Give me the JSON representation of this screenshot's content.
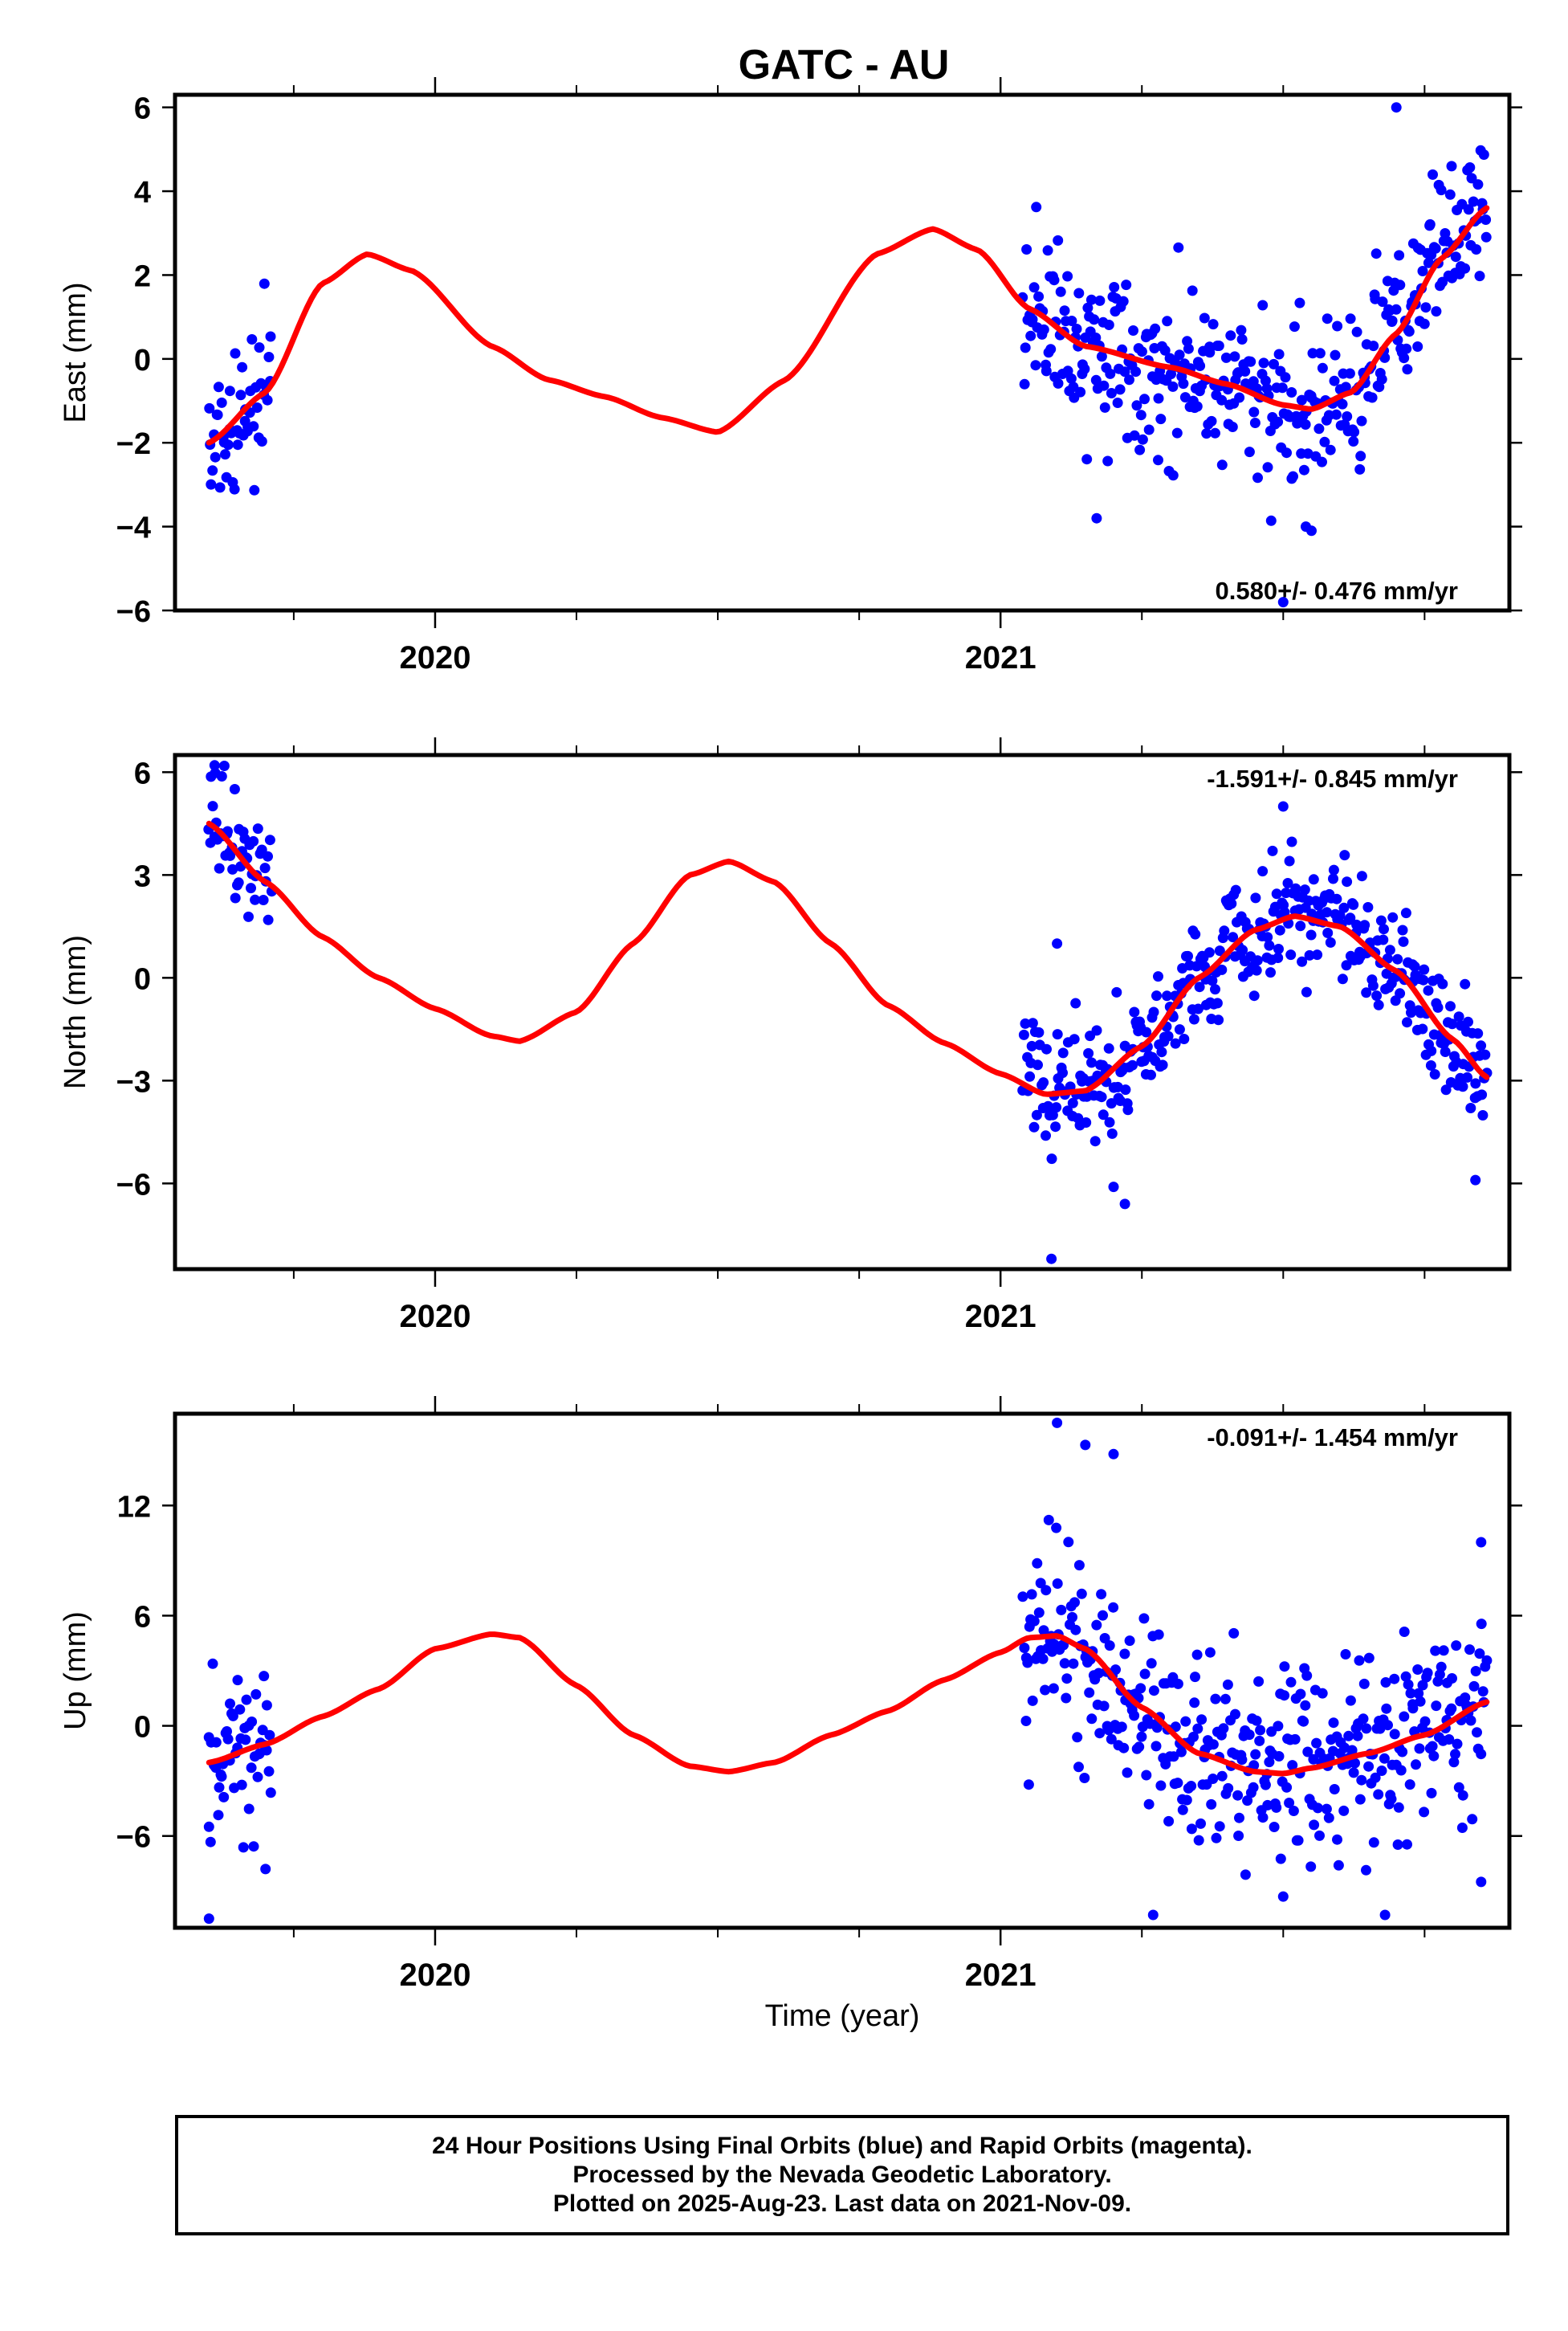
{
  "title": "GATC - AU",
  "xlabel": "Time (year)",
  "footer": {
    "line1": "24 Hour Positions Using Final Orbits (blue) and Rapid Orbits (magenta).",
    "line2": "Processed by the Nevada Geodetic Laboratory.",
    "line3": "Plotted on 2025-Aug-23. Last data on 2021-Nov-09."
  },
  "colors": {
    "points": "#0000ff",
    "fit": "#ff0000",
    "axes": "#000000"
  },
  "chart_data": [
    {
      "type": "scatter",
      "ylabel": "East (mm)",
      "rate": "0.580+/- 0.476 mm/yr",
      "rate_position": "bottom-right",
      "xlim": [
        2019.54,
        2021.9
      ],
      "ylim": [
        -6,
        6.3
      ],
      "xticks": [
        2020,
        2021
      ],
      "yticks": [
        -6,
        -4,
        -2,
        0,
        2,
        4,
        6
      ],
      "ytick_labels": [
        "−6",
        "−4",
        "−2",
        "0",
        "2",
        "4",
        "6"
      ],
      "seasonal_model": {
        "x": [
          2019.6,
          2019.7,
          2019.8,
          2019.88,
          2019.96,
          2020.1,
          2020.2,
          2020.3,
          2020.4,
          2020.5,
          2020.62,
          2020.78,
          2020.88,
          2020.96,
          2021.05,
          2021.15,
          2021.3,
          2021.4,
          2021.5,
          2021.55,
          2021.62,
          2021.7,
          2021.78,
          2021.86
        ],
        "y": [
          -2.0,
          -0.8,
          1.8,
          2.5,
          2.1,
          0.3,
          -0.5,
          -0.9,
          -1.4,
          -1.75,
          -0.5,
          2.5,
          3.1,
          2.6,
          1.2,
          0.3,
          -0.2,
          -0.6,
          -1.1,
          -1.2,
          -0.8,
          0.6,
          2.4,
          3.6
        ]
      },
      "observation_periods": [
        [
          2019.6,
          2019.71
        ],
        [
          2021.04,
          2021.86
        ]
      ],
      "noise_sigma": 0.9,
      "n_points": [
        50,
        380
      ],
      "outliers": {
        "x": [
          2021.7,
          2021.17,
          2021.54,
          2021.55,
          2021.5
        ],
        "y": [
          6.0,
          -3.8,
          -4.0,
          -4.1,
          -5.8
        ]
      }
    },
    {
      "type": "scatter",
      "ylabel": "North (mm)",
      "rate": "-1.591+/- 0.845 mm/yr",
      "rate_position": "top-right",
      "xlim": [
        2019.54,
        2021.9
      ],
      "ylim": [
        -8.5,
        6.5
      ],
      "xticks": [
        2020,
        2021
      ],
      "yticks": [
        -6,
        -3,
        0,
        3,
        6
      ],
      "ytick_labels": [
        "−6",
        "−3",
        "0",
        "3",
        "6"
      ],
      "seasonal_model": {
        "x": [
          2019.6,
          2019.7,
          2019.8,
          2019.9,
          2020.0,
          2020.1,
          2020.15,
          2020.25,
          2020.35,
          2020.45,
          2020.52,
          2020.6,
          2020.7,
          2020.8,
          2020.9,
          2021.0,
          2021.08,
          2021.15,
          2021.25,
          2021.35,
          2021.45,
          2021.52,
          2021.6,
          2021.7,
          2021.8,
          2021.86
        ],
        "y": [
          4.5,
          2.8,
          1.2,
          0.0,
          -0.9,
          -1.7,
          -1.85,
          -1.0,
          1.0,
          3.0,
          3.4,
          2.8,
          1.0,
          -0.8,
          -1.9,
          -2.8,
          -3.4,
          -3.3,
          -2.0,
          0.0,
          1.4,
          1.8,
          1.5,
          0.2,
          -1.8,
          -2.9
        ]
      },
      "observation_periods": [
        [
          2019.6,
          2019.71
        ],
        [
          2021.04,
          2021.86
        ]
      ],
      "noise_sigma": 0.9,
      "n_points": [
        50,
        380
      ],
      "outliers": {
        "x": [
          2019.61,
          2021.09,
          2021.1,
          2021.2,
          2021.22,
          2021.84,
          2021.5
        ],
        "y": [
          6.2,
          -8.2,
          1.0,
          -6.1,
          -6.6,
          -5.9,
          5.0
        ]
      }
    },
    {
      "type": "scatter",
      "ylabel": "Up (mm)",
      "rate": "-0.091+/- 1.454 mm/yr",
      "rate_position": "top-right",
      "xlim": [
        2019.54,
        2021.9
      ],
      "ylim": [
        -11,
        17
      ],
      "xticks": [
        2020,
        2021
      ],
      "yticks": [
        -6,
        0,
        6,
        12
      ],
      "ytick_labels": [
        "−6",
        "0",
        "6",
        "12"
      ],
      "seasonal_model": {
        "x": [
          2019.6,
          2019.7,
          2019.8,
          2019.9,
          2020.0,
          2020.1,
          2020.15,
          2020.25,
          2020.35,
          2020.45,
          2020.52,
          2020.6,
          2020.7,
          2020.8,
          2020.9,
          2021.0,
          2021.05,
          2021.1,
          2021.15,
          2021.25,
          2021.35,
          2021.45,
          2021.5,
          2021.55,
          2021.65,
          2021.75,
          2021.86
        ],
        "y": [
          -2.0,
          -1.0,
          0.5,
          2.0,
          4.2,
          5.0,
          4.8,
          2.2,
          -0.5,
          -2.2,
          -2.5,
          -2.0,
          -0.5,
          0.8,
          2.5,
          4.0,
          4.8,
          4.9,
          4.2,
          1.0,
          -1.5,
          -2.5,
          -2.6,
          -2.3,
          -1.5,
          -0.5,
          1.3
        ]
      },
      "observation_periods": [
        [
          2019.6,
          2019.71
        ],
        [
          2021.04,
          2021.86
        ]
      ],
      "noise_sigma": 2.6,
      "n_points": [
        50,
        380
      ],
      "outliers": {
        "x": [
          2019.6,
          2019.6,
          2019.7,
          2021.1,
          2021.15,
          2021.2,
          2021.27,
          2021.5,
          2021.68,
          2021.85,
          2021.85,
          2021.05
        ],
        "y": [
          -10.5,
          -5.5,
          -7.8,
          16.5,
          15.3,
          14.8,
          -10.3,
          -9.3,
          -10.3,
          10.0,
          -8.5,
          -3.2
        ]
      }
    }
  ]
}
